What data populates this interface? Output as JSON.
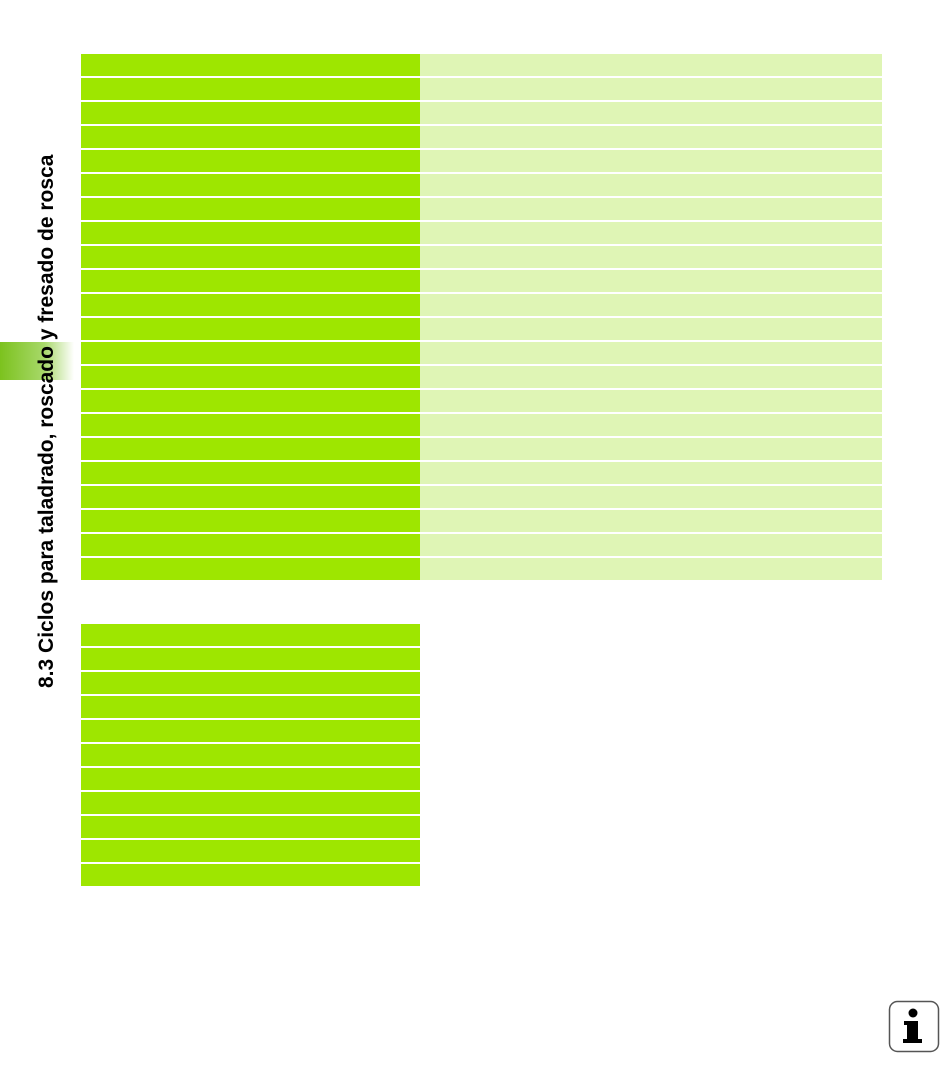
{
  "header": {
    "section_title": "8.3 Ciclos para taladrado, roscado y fresado de rosca"
  }
}
